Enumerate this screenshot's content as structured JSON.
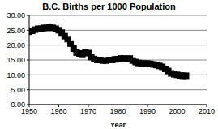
{
  "chart_data": {
    "type": "scatter",
    "title": "B.C. Births per 1000 Population",
    "x_label": "Year",
    "x": [
      1950,
      1951,
      1952,
      1953,
      1954,
      1955,
      1956,
      1957,
      1958,
      1959,
      1960,
      1961,
      1962,
      1963,
      1964,
      1965,
      1966,
      1967,
      1968,
      1969,
      1970,
      1971,
      1972,
      1973,
      1974,
      1975,
      1976,
      1977,
      1978,
      1979,
      1980,
      1981,
      1982,
      1983,
      1984,
      1985,
      1986,
      1987,
      1988,
      1989,
      1990,
      1991,
      1992,
      1993,
      1994,
      1995,
      1996,
      1997,
      1998,
      1999,
      2000,
      2001,
      2002,
      2003
    ],
    "values": [
      24.5,
      24.8,
      25.2,
      25.5,
      25.5,
      25.8,
      25.8,
      26.2,
      25.8,
      25.5,
      25.0,
      24.2,
      23.0,
      22.0,
      20.5,
      18.8,
      17.5,
      17.2,
      17.0,
      17.5,
      17.3,
      16.0,
      15.3,
      15.0,
      15.0,
      14.8,
      14.8,
      15.0,
      15.0,
      15.2,
      15.3,
      15.5,
      15.5,
      15.3,
      15.5,
      14.8,
      14.3,
      14.0,
      13.8,
      13.8,
      13.8,
      13.7,
      13.5,
      13.3,
      13.0,
      12.7,
      12.0,
      11.3,
      10.5,
      10.2,
      10.0,
      9.8,
      9.7,
      9.7
    ],
    "color": "#000000",
    "marker": "square",
    "xlim": [
      1950,
      2010
    ],
    "xticks": [
      1950,
      1960,
      1970,
      1980,
      1990,
      2000,
      2010
    ],
    "ylim": [
      0,
      30
    ],
    "yticks": [
      {
        "value": 0,
        "label": "0.00"
      },
      {
        "value": 5,
        "label": "5.00"
      },
      {
        "value": 10,
        "label": "10.00"
      },
      {
        "value": 15,
        "label": "15.00"
      },
      {
        "value": 20,
        "label": "20.00"
      },
      {
        "value": 25,
        "label": "25.00"
      },
      {
        "value": 30,
        "label": "30.00"
      }
    ],
    "grid": true
  }
}
